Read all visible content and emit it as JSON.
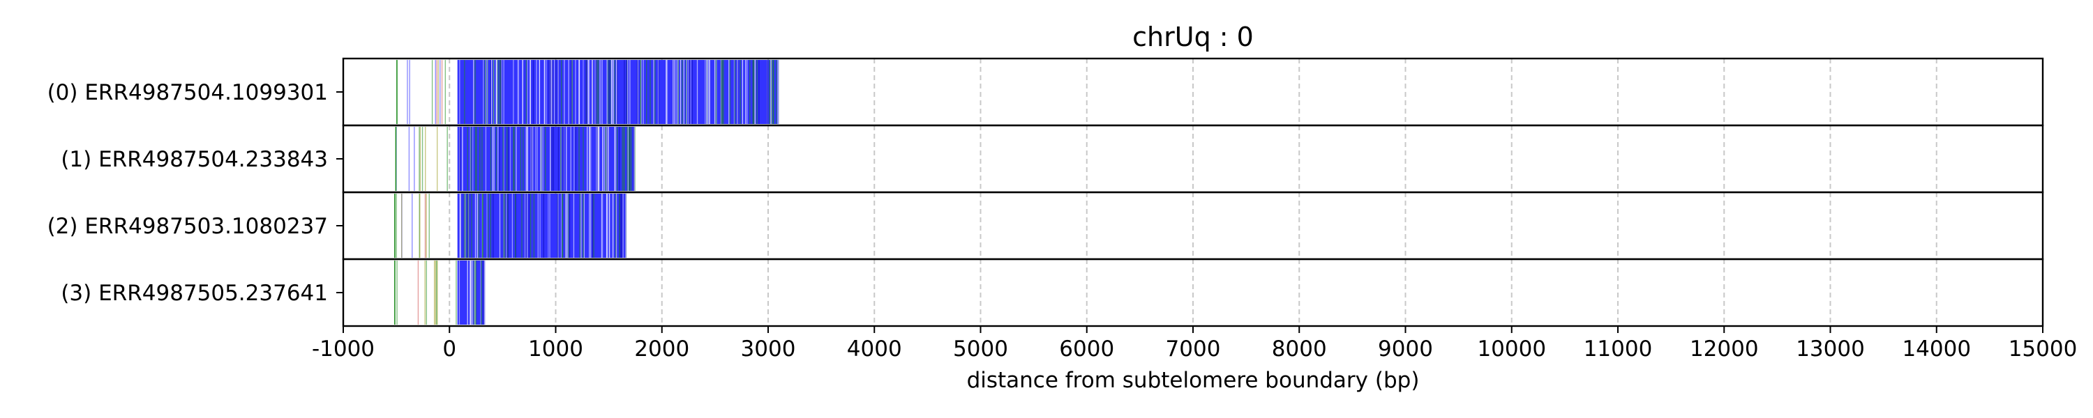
{
  "chart_data": {
    "type": "read-track plot",
    "title": "chrUq : 0",
    "xlabel": "distance from subtelomere boundary (bp)",
    "ylabel": "",
    "xlim": [
      -1000,
      15000
    ],
    "x_ticks": [
      -1000,
      0,
      1000,
      2000,
      3000,
      4000,
      5000,
      6000,
      7000,
      8000,
      9000,
      10000,
      11000,
      12000,
      13000,
      14000,
      15000
    ],
    "grid": "vertical dashed",
    "colors": {
      "main": "#3333ff",
      "green": "#1e8c1e",
      "red": "#d05050",
      "olive": "#9a9a20",
      "grid": "#c8c8c8",
      "frame": "#000000"
    },
    "reads": [
      {
        "label": "(0) ERR4987504.1099301",
        "start": -500,
        "end": 3100,
        "dense_start": 75
      },
      {
        "label": "(1) ERR4987504.233843",
        "start": -510,
        "end": 1745,
        "dense_start": 75
      },
      {
        "label": "(2) ERR4987503.1080237",
        "start": -520,
        "end": 1665,
        "dense_start": 75
      },
      {
        "label": "(3) ERR4987505.237641",
        "start": -520,
        "end": 335,
        "dense_start": 75
      }
    ]
  }
}
